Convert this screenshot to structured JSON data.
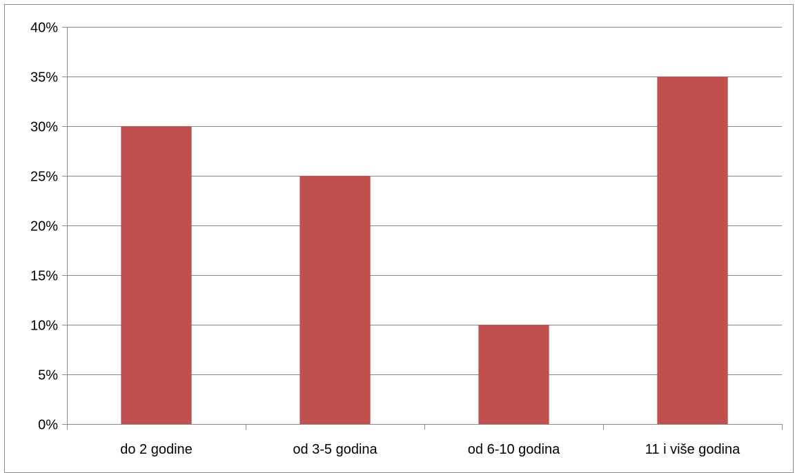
{
  "chart_data": {
    "type": "bar",
    "title": "",
    "xlabel": "",
    "ylabel": "",
    "categories": [
      "do 2 godine",
      "od 3-5 godina",
      "od 6-10 godina",
      "11 i više godina"
    ],
    "values": [
      30,
      25,
      10,
      35
    ],
    "ylim": [
      0,
      40
    ],
    "y_ticks": [
      {
        "value": 0,
        "label": "0%"
      },
      {
        "value": 5,
        "label": "5%"
      },
      {
        "value": 10,
        "label": "10%"
      },
      {
        "value": 15,
        "label": "15%"
      },
      {
        "value": 20,
        "label": "20%"
      },
      {
        "value": 25,
        "label": "25%"
      },
      {
        "value": 30,
        "label": "30%"
      },
      {
        "value": 35,
        "label": "35%"
      },
      {
        "value": 40,
        "label": "40%"
      }
    ],
    "grid": true,
    "legend": "none",
    "bar_color": "#c0504d",
    "grid_color": "#878787",
    "axis_color": "#878787"
  }
}
